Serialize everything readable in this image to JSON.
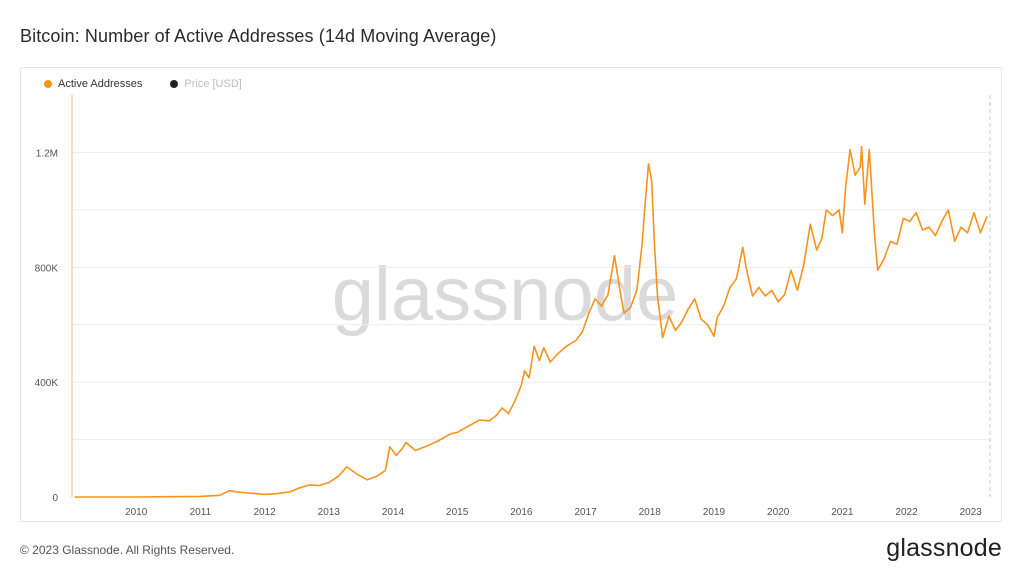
{
  "page": {
    "title": "Bitcoin: Number of Active Addresses (14d Moving Average)",
    "copyright": "© 2023 Glassnode. All Rights Reserved.",
    "logo": "glassnode",
    "watermark": "glassnode"
  },
  "legend": {
    "items": [
      {
        "label": "Active Addresses",
        "color": "#f7931a",
        "active": true
      },
      {
        "label": "Price [USD]",
        "color": "#222222",
        "active": false
      }
    ]
  },
  "colors": {
    "series": "#f7931a",
    "grid": "#eeeeee",
    "axis_text": "#555555",
    "watermark": "#d9d9d9"
  },
  "chart_data": {
    "type": "line",
    "title": "Bitcoin: Number of Active Addresses (14d Moving Average)",
    "xlim": [
      2009.0,
      2023.3
    ],
    "ylim": [
      0,
      1400000
    ],
    "x_ticks": [
      2010,
      2011,
      2012,
      2013,
      2014,
      2015,
      2016,
      2017,
      2018,
      2019,
      2020,
      2021,
      2022,
      2023
    ],
    "x_tick_labels": [
      "2010",
      "2011",
      "2012",
      "2013",
      "2014",
      "2015",
      "2016",
      "2017",
      "2018",
      "2019",
      "2020",
      "2021",
      "2022",
      "2023"
    ],
    "y_ticks": [
      0,
      400000,
      800000,
      1200000
    ],
    "y_tick_labels": [
      "0",
      "400K",
      "800K",
      "1.2M"
    ],
    "grid_y": [
      200000,
      400000,
      600000,
      800000,
      1000000,
      1200000
    ],
    "grid": true,
    "legend_position": "top-left",
    "series": [
      {
        "name": "Active Addresses",
        "color": "#f7931a",
        "x": [
          2009.05,
          2010.0,
          2010.5,
          2011.0,
          2011.3,
          2011.45,
          2011.55,
          2011.75,
          2012.0,
          2012.2,
          2012.4,
          2012.55,
          2012.7,
          2012.85,
          2013.0,
          2013.15,
          2013.28,
          2013.45,
          2013.6,
          2013.75,
          2013.88,
          2013.95,
          2014.05,
          2014.15,
          2014.2,
          2014.35,
          2014.5,
          2014.7,
          2014.9,
          2015.0,
          2015.2,
          2015.35,
          2015.5,
          2015.6,
          2015.7,
          2015.8,
          2015.9,
          2016.0,
          2016.05,
          2016.12,
          2016.2,
          2016.28,
          2016.35,
          2016.45,
          2016.55,
          2016.7,
          2016.85,
          2016.95,
          2017.05,
          2017.15,
          2017.25,
          2017.35,
          2017.45,
          2017.55,
          2017.6,
          2017.7,
          2017.8,
          2017.88,
          2017.92,
          2017.98,
          2018.03,
          2018.07,
          2018.12,
          2018.2,
          2018.3,
          2018.4,
          2018.5,
          2018.6,
          2018.7,
          2018.8,
          2018.9,
          2019.0,
          2019.05,
          2019.15,
          2019.25,
          2019.35,
          2019.45,
          2019.5,
          2019.6,
          2019.7,
          2019.8,
          2019.9,
          2020.0,
          2020.1,
          2020.2,
          2020.3,
          2020.4,
          2020.5,
          2020.6,
          2020.68,
          2020.75,
          2020.85,
          2020.95,
          2021.0,
          2021.05,
          2021.12,
          2021.2,
          2021.28,
          2021.3,
          2021.35,
          2021.42,
          2021.5,
          2021.55,
          2021.65,
          2021.75,
          2021.85,
          2021.95,
          2022.05,
          2022.15,
          2022.25,
          2022.35,
          2022.45,
          2022.55,
          2022.65,
          2022.75,
          2022.85,
          2022.95,
          2023.05,
          2023.15,
          2023.25
        ],
        "y": [
          0,
          0,
          1000,
          2000,
          6000,
          22000,
          18000,
          14000,
          9000,
          12000,
          18000,
          32000,
          42000,
          40000,
          50000,
          72000,
          105000,
          78000,
          60000,
          72000,
          92000,
          175000,
          145000,
          170000,
          190000,
          162000,
          175000,
          195000,
          220000,
          225000,
          250000,
          268000,
          265000,
          282000,
          310000,
          290000,
          335000,
          390000,
          440000,
          415000,
          525000,
          475000,
          520000,
          470000,
          495000,
          525000,
          545000,
          575000,
          640000,
          690000,
          665000,
          705000,
          840000,
          700000,
          640000,
          660000,
          720000,
          880000,
          1000000,
          1160000,
          1100000,
          890000,
          700000,
          555000,
          630000,
          580000,
          610000,
          655000,
          690000,
          620000,
          600000,
          560000,
          625000,
          665000,
          730000,
          760000,
          870000,
          800000,
          700000,
          730000,
          700000,
          720000,
          680000,
          705000,
          790000,
          720000,
          810000,
          950000,
          860000,
          900000,
          1000000,
          980000,
          1000000,
          920000,
          1080000,
          1210000,
          1120000,
          1150000,
          1220000,
          1020000,
          1210000,
          920000,
          790000,
          830000,
          890000,
          880000,
          970000,
          960000,
          990000,
          930000,
          940000,
          910000,
          960000,
          1000000,
          890000,
          940000,
          920000,
          990000,
          920000,
          975000
        ]
      }
    ]
  }
}
